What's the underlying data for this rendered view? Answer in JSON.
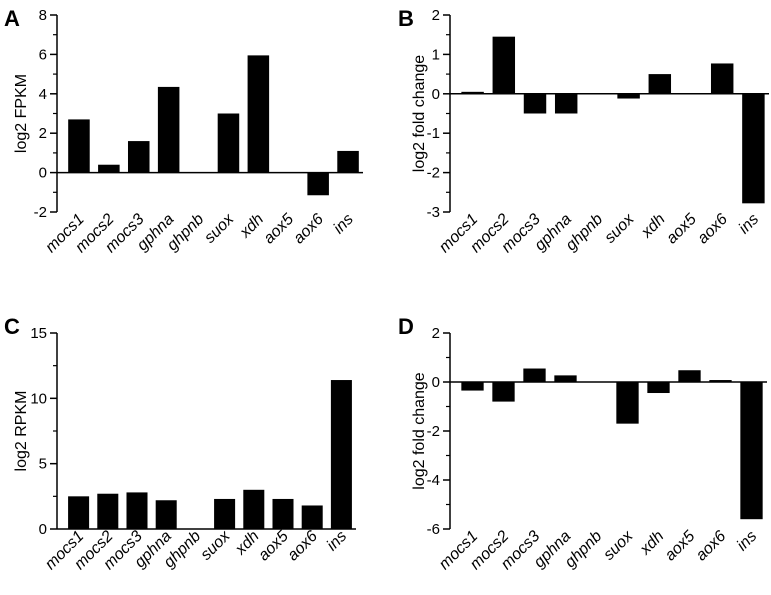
{
  "chart_data": [
    {
      "panel": "A",
      "type": "bar",
      "ylabel": "log2 FPKM",
      "ylim": [
        -2,
        8
      ],
      "yticks": [
        -2,
        0,
        2,
        4,
        6,
        8
      ],
      "minor_ticks": true,
      "categories": [
        "mocs1",
        "mocs2",
        "mocs3",
        "gphna",
        "ghpnb",
        "suox",
        "xdh",
        "aox5",
        "aox6",
        "ins"
      ],
      "values": [
        2.7,
        0.4,
        1.6,
        4.35,
        0,
        3.0,
        5.95,
        0,
        -1.15,
        1.1
      ]
    },
    {
      "panel": "B",
      "type": "bar",
      "ylabel": "log2 fold change",
      "ylim": [
        -3,
        2
      ],
      "yticks": [
        -3,
        -2,
        -1,
        0,
        1,
        2
      ],
      "minor_ticks": true,
      "categories": [
        "mocs1",
        "mocs2",
        "mocs3",
        "gphna",
        "ghpnb",
        "suox",
        "xdh",
        "aox5",
        "aox6",
        "ins"
      ],
      "values": [
        0.05,
        1.45,
        -0.5,
        -0.5,
        0,
        -0.12,
        0.5,
        0,
        0.77,
        -2.78
      ]
    },
    {
      "panel": "C",
      "type": "bar",
      "ylabel": "log2 RPKM",
      "ylim": [
        0,
        15
      ],
      "yticks": [
        0,
        5,
        10,
        15
      ],
      "minor_ticks": true,
      "categories": [
        "mocs1",
        "mocs2",
        "mocs3",
        "gphna",
        "ghpnb",
        "suox",
        "xdh",
        "aox5",
        "aox6",
        "ins"
      ],
      "values": [
        2.5,
        2.7,
        2.8,
        2.2,
        0,
        2.3,
        3.0,
        2.3,
        1.8,
        11.4
      ]
    },
    {
      "panel": "D",
      "type": "bar",
      "ylabel": "log2 fold change",
      "ylim": [
        -6,
        2
      ],
      "yticks": [
        -6,
        -4,
        -2,
        0,
        2
      ],
      "minor_ticks": true,
      "categories": [
        "mocs1",
        "mocs2",
        "mocs3",
        "gphna",
        "ghpnb",
        "suox",
        "xdh",
        "aox5",
        "aox6",
        "ins"
      ],
      "values": [
        -0.35,
        -0.8,
        0.55,
        0.27,
        0,
        -1.7,
        -0.45,
        0.48,
        0.08,
        -5.6
      ]
    }
  ],
  "colors": {
    "bar": "#000000",
    "axis": "#000000",
    "background": "#ffffff"
  }
}
